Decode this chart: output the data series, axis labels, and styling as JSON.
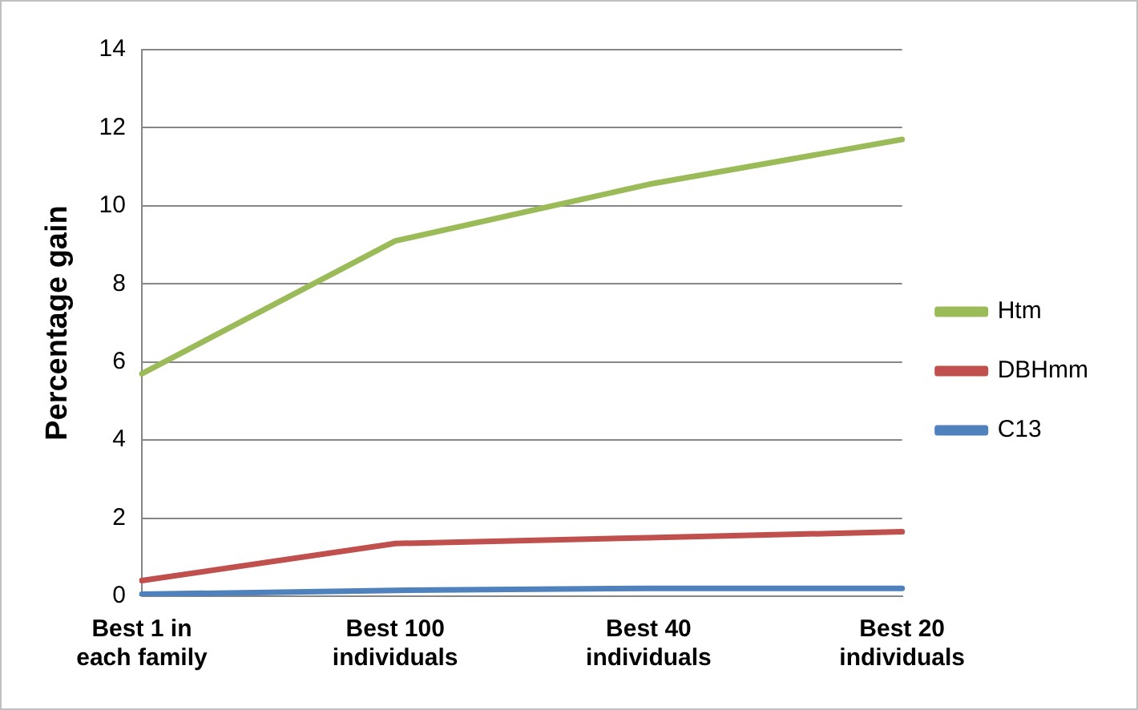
{
  "chart_data": {
    "type": "line",
    "ylabel": "Percentage gain",
    "categories": [
      "Best 1 in\neach family",
      "Best 100\nindividuals",
      "Best 40\nindividuals",
      "Best 20\nindividuals"
    ],
    "series": [
      {
        "name": "Htm",
        "color": "#9bbb59",
        "values": [
          5.7,
          9.1,
          10.55,
          11.7
        ]
      },
      {
        "name": "DBHmm",
        "color": "#c0504d",
        "values": [
          0.4,
          1.35,
          1.5,
          1.65
        ]
      },
      {
        "name": "C13",
        "color": "#4f81bd",
        "values": [
          0.05,
          0.15,
          0.2,
          0.2
        ]
      }
    ],
    "ylim": [
      0,
      14
    ],
    "yticks": [
      0,
      2,
      4,
      6,
      8,
      10,
      12,
      14
    ],
    "grid": "y",
    "legend": "right",
    "marker": "none",
    "line_style": "solid"
  }
}
